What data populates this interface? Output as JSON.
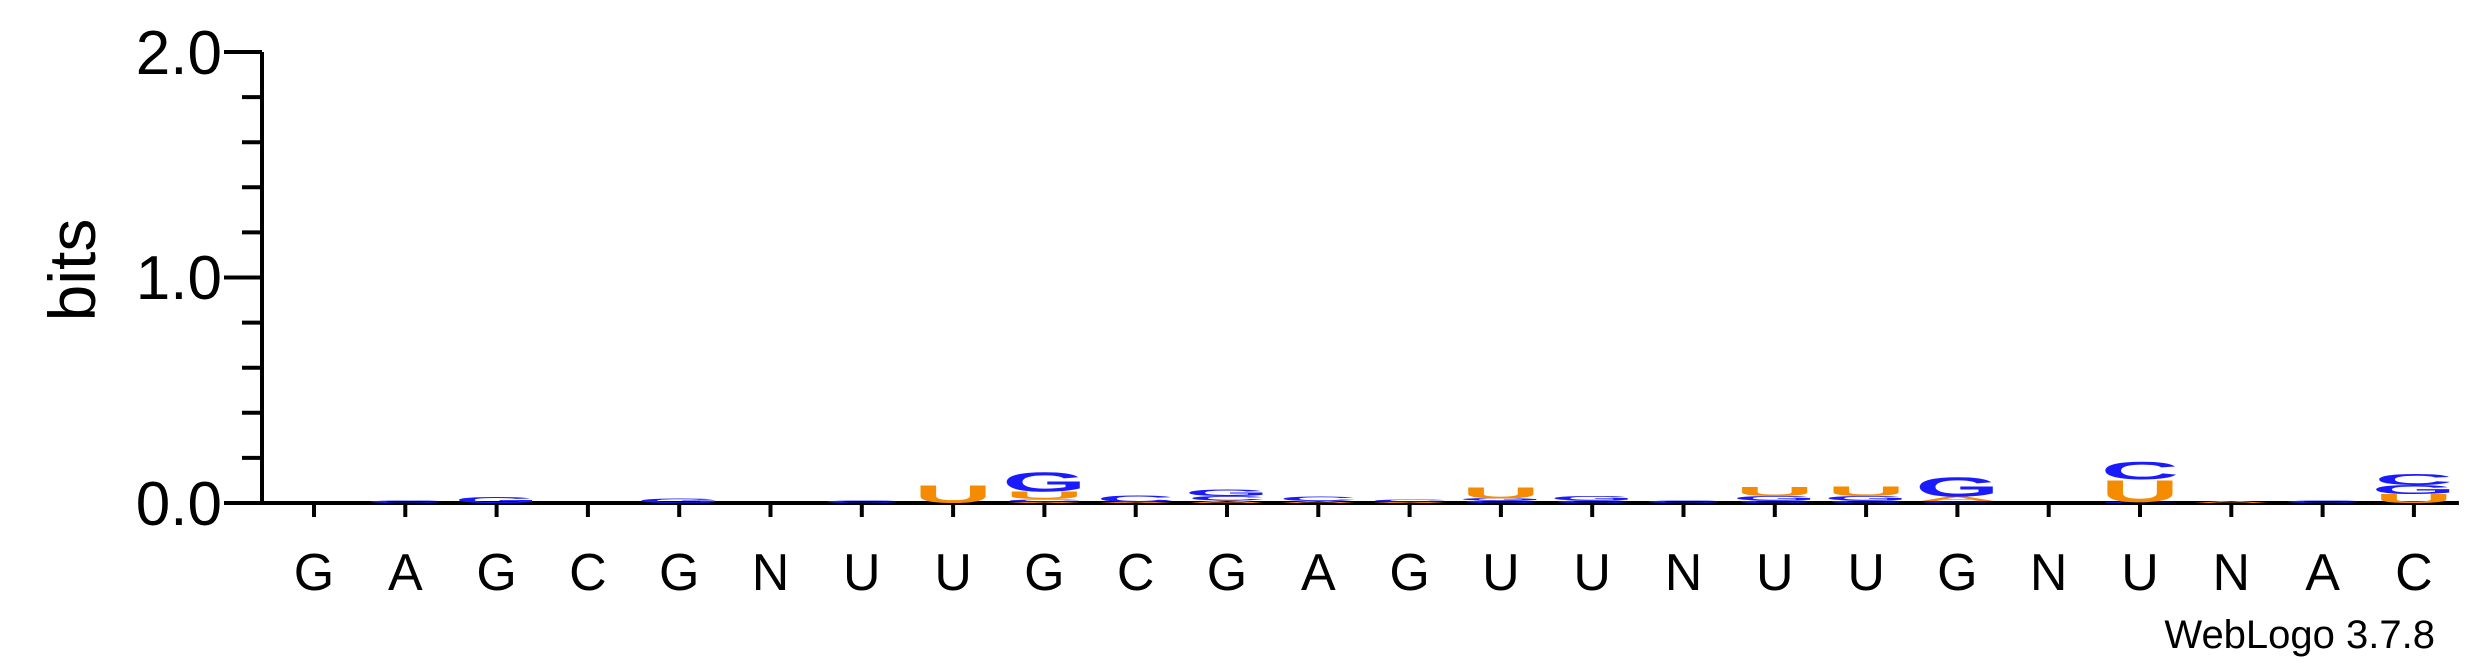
{
  "chart_data": {
    "type": "sequence-logo",
    "ylabel": "bits",
    "ylim": [
      0,
      2.0
    ],
    "y_ticks": [
      "0.0",
      "1.0",
      "2.0"
    ],
    "positions": [
      "G",
      "A",
      "G",
      "C",
      "G",
      "N",
      "U",
      "U",
      "G",
      "C",
      "G",
      "A",
      "G",
      "U",
      "U",
      "N",
      "U",
      "U",
      "G",
      "N",
      "U",
      "N",
      "A",
      "C"
    ],
    "letter_colors": {
      "U": "#f58b00",
      "G": "#1a1aff",
      "C": "#1a1aff",
      "A": "#f58b00"
    },
    "stacks": [
      [],
      [
        {
          "l": "C",
          "h": 0.01
        }
      ],
      [
        {
          "l": "G",
          "h": 0.025
        }
      ],
      [],
      [
        {
          "l": "G",
          "h": 0.02
        }
      ],
      [],
      [
        {
          "l": "C",
          "h": 0.012
        }
      ],
      [
        {
          "l": "U",
          "h": 0.08
        }
      ],
      [
        {
          "l": "A",
          "h": 0.005
        },
        {
          "l": "C",
          "h": 0.012
        },
        {
          "l": "U",
          "h": 0.035
        },
        {
          "l": "G",
          "h": 0.09
        }
      ],
      [
        {
          "l": "A",
          "h": 0.005
        },
        {
          "l": "C",
          "h": 0.03
        }
      ],
      [
        {
          "l": "A",
          "h": 0.012
        },
        {
          "l": "C",
          "h": 0.02
        },
        {
          "l": "G",
          "h": 0.03
        }
      ],
      [
        {
          "l": "A",
          "h": 0.008
        },
        {
          "l": "C",
          "h": 0.02
        }
      ],
      [
        {
          "l": "A",
          "h": 0.005
        },
        {
          "l": "C",
          "h": 0.012
        }
      ],
      [
        {
          "l": "C",
          "h": 0.01
        },
        {
          "l": "G",
          "h": 0.01
        },
        {
          "l": "U",
          "h": 0.05
        }
      ],
      [
        {
          "l": "C",
          "h": 0.01
        },
        {
          "l": "G",
          "h": 0.02
        }
      ],
      [
        {
          "l": "C",
          "h": 0.01
        }
      ],
      [
        {
          "l": "C",
          "h": 0.012
        },
        {
          "l": "G",
          "h": 0.02
        },
        {
          "l": "U",
          "h": 0.04
        }
      ],
      [
        {
          "l": "C",
          "h": 0.012
        },
        {
          "l": "G",
          "h": 0.02
        },
        {
          "l": "U",
          "h": 0.045
        }
      ],
      [
        {
          "l": "C",
          "h": 0.008
        },
        {
          "l": "A",
          "h": 0.02
        },
        {
          "l": "G",
          "h": 0.09
        }
      ],
      [],
      [
        {
          "l": "C",
          "h": 0.005
        },
        {
          "l": "U",
          "h": 0.1
        },
        {
          "l": "C",
          "h": 0.08
        }
      ],
      [
        {
          "l": "A",
          "h": 0.008
        }
      ],
      [
        {
          "l": "C",
          "h": 0.01
        }
      ],
      [
        {
          "l": "U",
          "h": 0.04
        },
        {
          "l": "G",
          "h": 0.04
        },
        {
          "l": "C",
          "h": 0.05
        }
      ]
    ],
    "credit": "WebLogo 3.7.8"
  }
}
